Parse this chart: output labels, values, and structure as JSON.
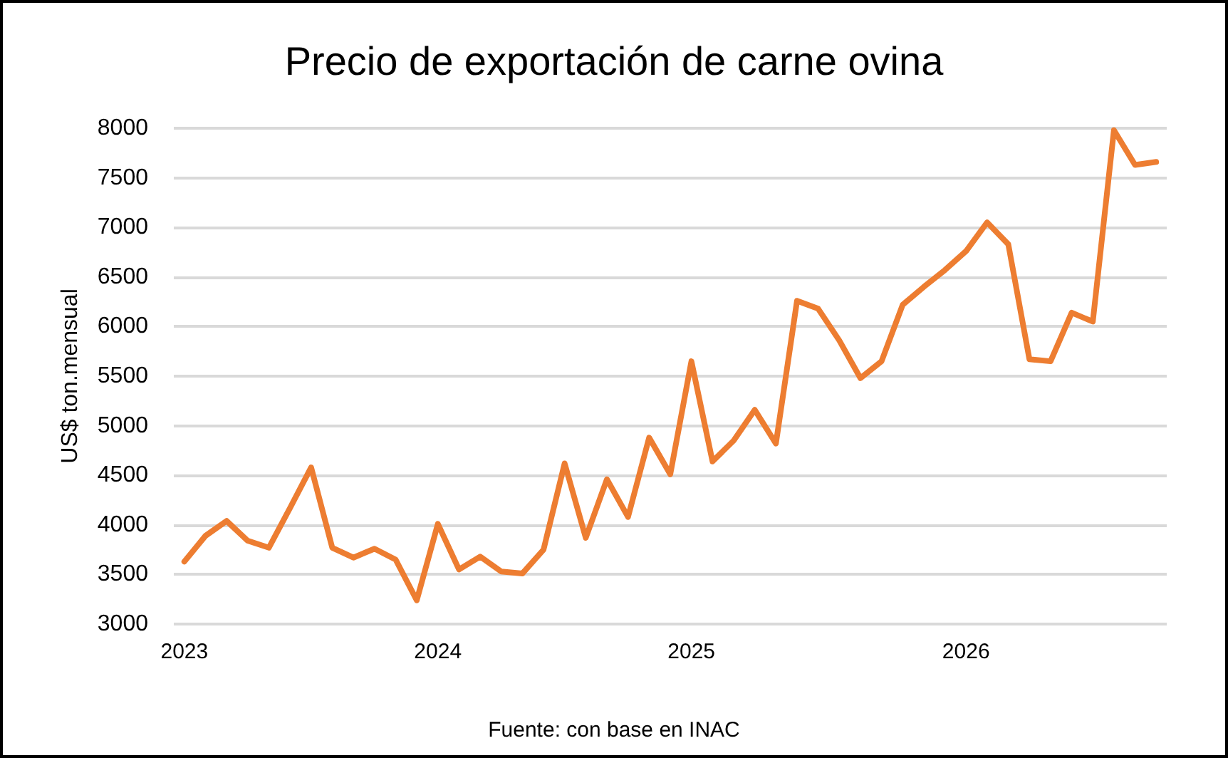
{
  "chart_data": {
    "type": "line",
    "title": "Precio de exportación de carne ovina",
    "ylabel": "US$ ton.mensual",
    "annotations": [
      "Fuente: con base en INAC"
    ],
    "categories": [
      "2023",
      null,
      null,
      null,
      null,
      null,
      null,
      null,
      null,
      null,
      null,
      null,
      "2024",
      null,
      null,
      null,
      null,
      null,
      null,
      null,
      null,
      null,
      null,
      null,
      "2025",
      null,
      null,
      null,
      null,
      null,
      null,
      null,
      null,
      null,
      null,
      null,
      null,
      "2026",
      null,
      null,
      null,
      null,
      null,
      null,
      null,
      null,
      null
    ],
    "series": [
      {
        "color": "#ed7d31",
        "values": [
          3630,
          3890,
          4040,
          3840,
          3770,
          4170,
          4580,
          3770,
          3670,
          3760,
          3650,
          3240,
          4010,
          3550,
          3680,
          3530,
          3510,
          3750,
          4620,
          3870,
          4460,
          4080,
          4880,
          4510,
          5650,
          4640,
          4850,
          5160,
          4820,
          6260,
          6180,
          5860,
          5480,
          5650,
          6220,
          6400,
          6570,
          6760,
          7050,
          6830,
          5670,
          5650,
          6140,
          6050,
          7980,
          7630,
          7660
        ]
      }
    ],
    "ylim": [
      3000,
      8000
    ],
    "yticks": [
      3000,
      3500,
      4000,
      4500,
      5000,
      5500,
      6000,
      6500,
      7000,
      7500,
      8000
    ],
    "grid": "y",
    "marker": "none",
    "line_style": "solid"
  }
}
